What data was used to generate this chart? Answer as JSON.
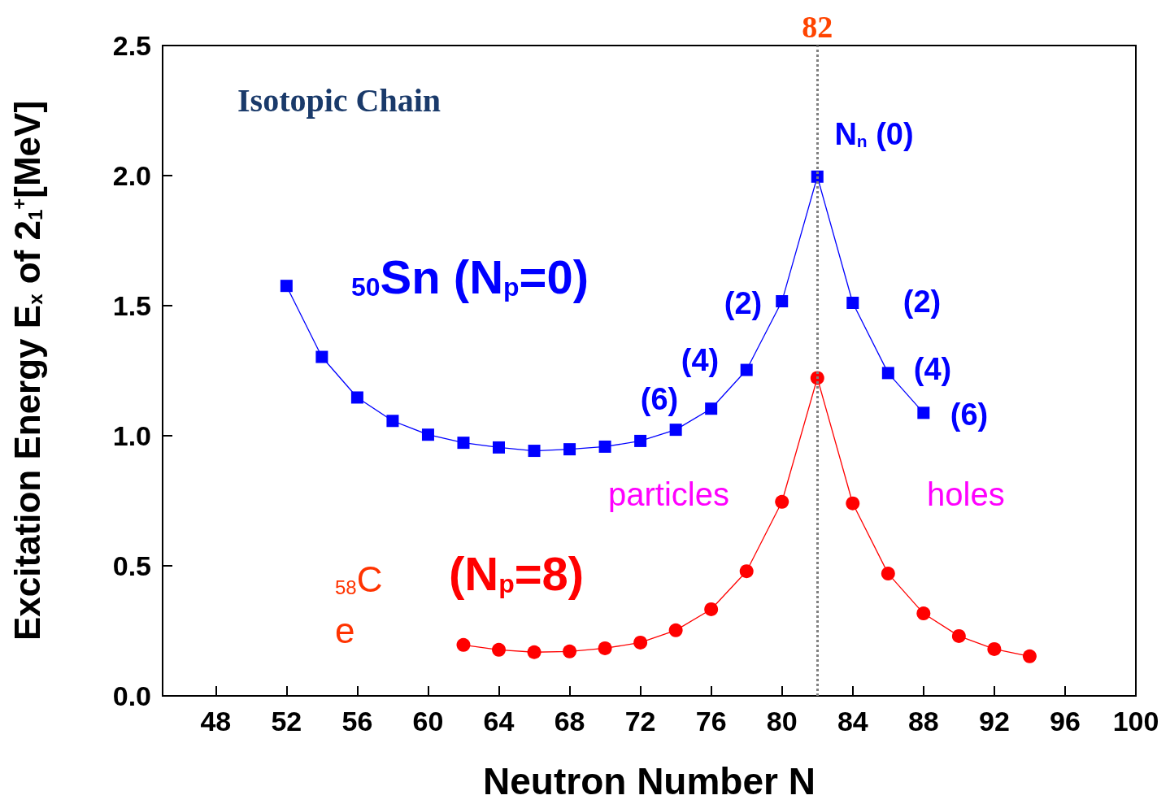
{
  "chart_data": {
    "type": "line",
    "xlabel": "Neutron Number N",
    "ylabel": "Excitation Energy E$_{x}$ of 2$_{1}$$^{+}$[MeV]",
    "xlim": [
      45,
      100
    ],
    "xticks": [
      48,
      52,
      56,
      60,
      64,
      68,
      72,
      76,
      80,
      84,
      88,
      92,
      96,
      100
    ],
    "ylim": [
      0,
      2.5
    ],
    "yticks": [
      {
        "value": 0,
        "label": "0.0"
      },
      0.5,
      {
        "value": 1,
        "label": "1.0"
      },
      1.5,
      {
        "value": 2,
        "label": "2.0"
      },
      2.5
    ],
    "grid": false,
    "line_style": "solid",
    "series": [
      {
        "color": "#0000ff",
        "marker": "square",
        "x": [
          52,
          54,
          56,
          58,
          60,
          62,
          64,
          66,
          68,
          70,
          72,
          74,
          76,
          78,
          80,
          82,
          84,
          86,
          88
        ],
        "values": [
          1.576,
          1.303,
          1.147,
          1.057,
          1.004,
          0.973,
          0.955,
          0.942,
          0.948,
          0.958,
          0.98,
          1.023,
          1.104,
          1.253,
          1.517,
          1.996,
          1.511,
          1.241,
          1.088
        ]
      },
      {
        "color": "#ff0000",
        "marker": "circle",
        "x": [
          62,
          64,
          66,
          68,
          70,
          72,
          74,
          76,
          78,
          80,
          82,
          84,
          86,
          88,
          90,
          92,
          94
        ],
        "values": [
          0.196,
          0.177,
          0.168,
          0.171,
          0.183,
          0.205,
          0.252,
          0.333,
          0.479,
          0.746,
          1.222,
          0.74,
          0.47,
          0.317,
          0.23,
          0.18,
          0.152
        ]
      }
    ],
    "ref_lines": [
      {
        "axis": "x",
        "value": 82,
        "label": "82",
        "color": "#808080",
        "line_style": "dotted"
      }
    ],
    "annotations": [
      "Isotopic Chain",
      "$_{50}$Sn (N$_{p}$=0)",
      "$_{58}$C",
      "e",
      "(N$_{p}$=8)",
      "particles",
      "holes",
      "N$_{n}$ (0)",
      "(2)",
      "(4)",
      "(6)",
      "(2)",
      "(4)",
      "(6)"
    ]
  }
}
